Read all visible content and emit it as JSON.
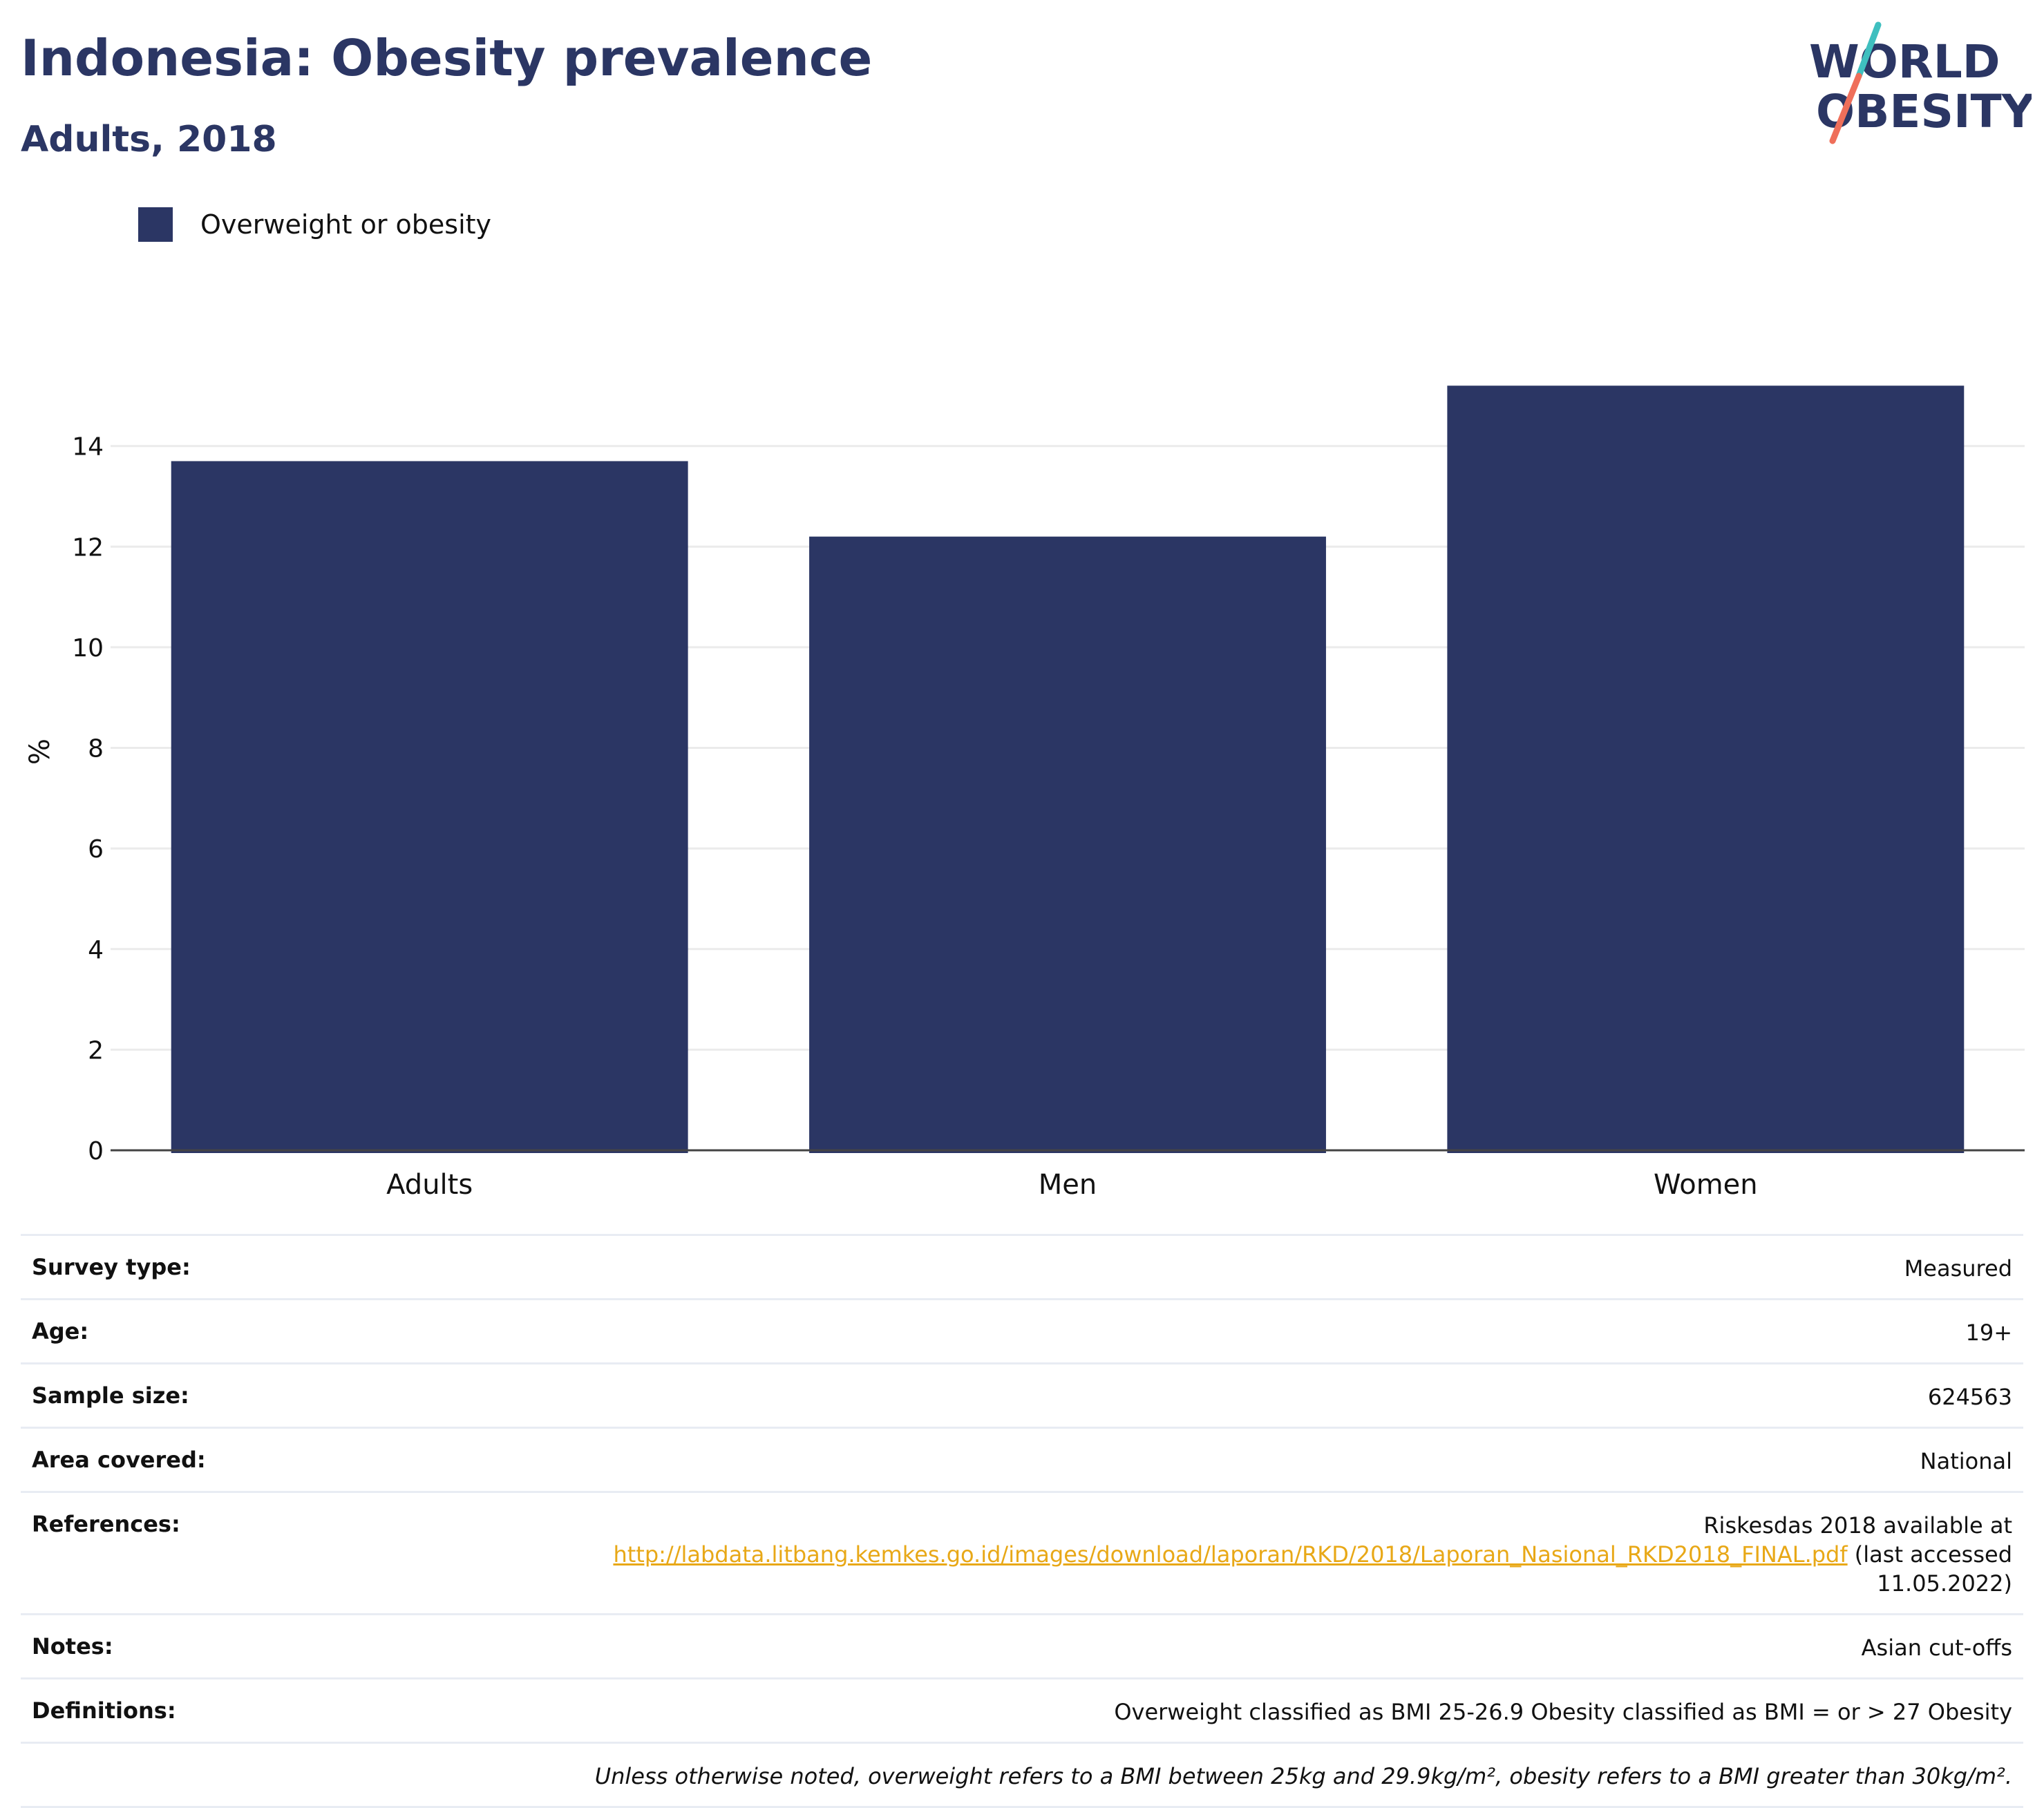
{
  "header": {
    "title": "Indonesia: Obesity prevalence",
    "subtitle": "Adults, 2018",
    "logo_line1": "WORLD",
    "logo_line2": "OBESITY"
  },
  "colors": {
    "bar": "#2b3664",
    "title": "#2b3664",
    "link": "#e8a817",
    "grid": "#ebebeb",
    "logo_teal": "#3fbfbf",
    "logo_coral": "#ef6f5a"
  },
  "chart_data": {
    "type": "bar",
    "categories": [
      "Adults",
      "Men",
      "Women"
    ],
    "series": [
      {
        "name": "Overweight or obesity",
        "values": [
          13.7,
          12.2,
          15.2
        ]
      }
    ],
    "title": "Indonesia: Obesity prevalence",
    "subtitle": "Adults, 2018",
    "xlabel": "",
    "ylabel": "%",
    "ylim": [
      0,
      16
    ],
    "yticks": [
      0,
      2,
      4,
      6,
      8,
      10,
      12,
      14
    ],
    "grid": true,
    "legend_position": "top-left"
  },
  "meta": {
    "survey_type_label": "Survey type:",
    "survey_type_value": "Measured",
    "age_label": "Age:",
    "age_value": "19+",
    "sample_size_label": "Sample size:",
    "sample_size_value": "624563",
    "area_label": "Area covered:",
    "area_value": "National",
    "references_label": "References:",
    "references_text": "Riskesdas 2018 available at",
    "references_link": "http://labdata.litbang.kemkes.go.id/images/download/laporan/RKD/2018/Laporan_Nasional_RKD2018_FINAL.pdf",
    "references_suffix": "(last accessed",
    "references_date": "11.05.2022)",
    "notes_label": "Notes:",
    "notes_value": "Asian cut-offs",
    "definitions_label": "Definitions:",
    "definitions_value": "Overweight classified as BMI 25-26.9 Obesity classified as BMI = or > 27 Obesity",
    "footnote": "Unless otherwise noted, overweight refers to a BMI between 25kg and 29.9kg/m², obesity refers to a BMI greater than 30kg/m²."
  }
}
